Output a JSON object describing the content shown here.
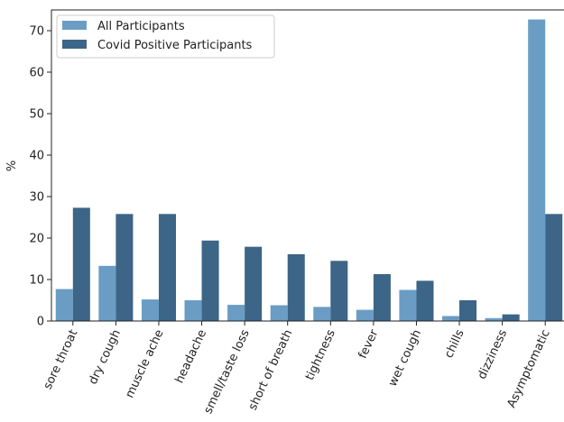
{
  "chart_data": {
    "type": "bar",
    "ylabel": "%",
    "xlabel": "",
    "ylim": [
      0,
      75
    ],
    "yticks": [
      0,
      10,
      20,
      30,
      40,
      50,
      60,
      70
    ],
    "categories": [
      "sore throat",
      "dry cough",
      "muscle ache",
      "headache",
      "smell/taste loss",
      "short of breath",
      "tightness",
      "fever",
      "wet cough",
      "chills",
      "dizziness",
      "Asymptomatic"
    ],
    "series": [
      {
        "name": "All Participants",
        "color": "#6b9dc4",
        "values": [
          7.7,
          13.3,
          5.2,
          5.0,
          3.9,
          3.8,
          3.4,
          2.7,
          7.5,
          1.2,
          0.7,
          72.7
        ]
      },
      {
        "name": "Covid Positive Participants",
        "color": "#3c6587",
        "values": [
          27.3,
          25.8,
          25.8,
          19.4,
          17.9,
          16.1,
          14.5,
          11.3,
          9.7,
          5.0,
          1.6,
          25.8
        ]
      }
    ],
    "legend_position": "top-left",
    "grid": false
  }
}
